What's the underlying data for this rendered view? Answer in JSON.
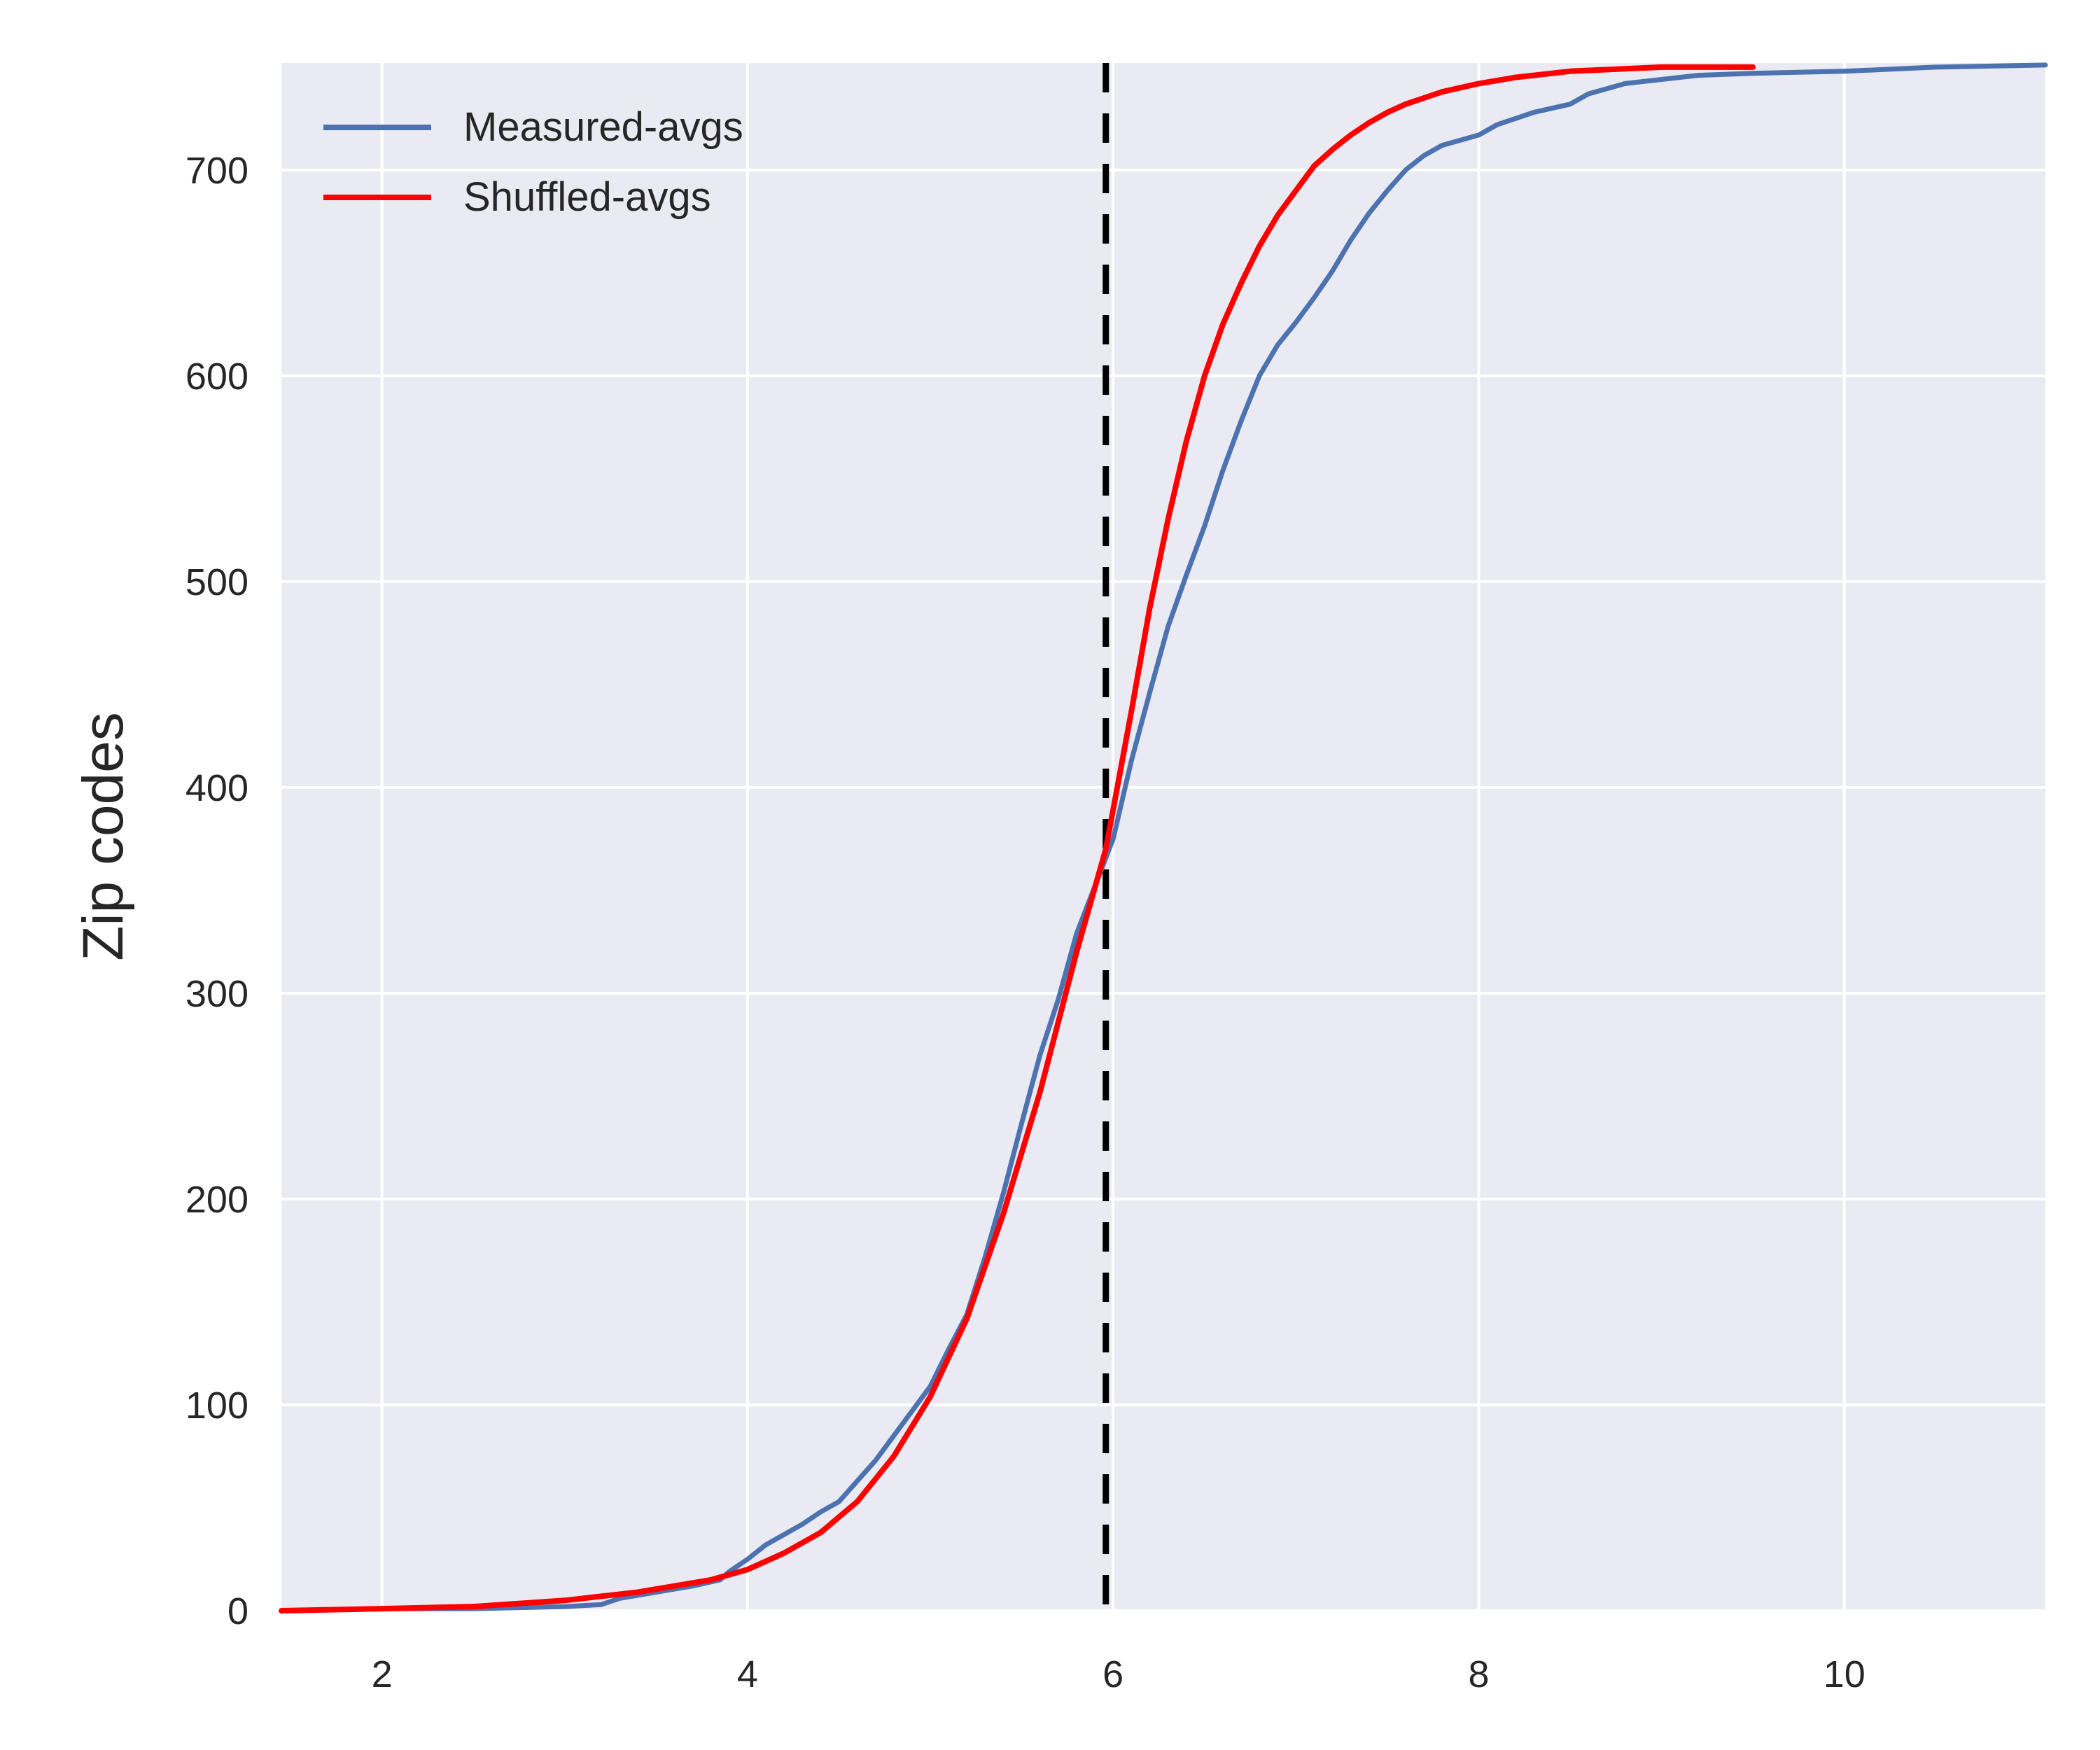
{
  "chart_data": {
    "type": "line",
    "title": "",
    "xlabel": "",
    "ylabel": "Zip codes",
    "xlim": [
      1.45,
      11.1
    ],
    "ylim": [
      0,
      752
    ],
    "x_ticks": [
      2,
      4,
      6,
      8,
      10
    ],
    "x_tick_labels": [
      "2",
      "4",
      "6",
      "8",
      "10"
    ],
    "y_ticks": [
      0,
      100,
      200,
      300,
      400,
      500,
      600,
      700
    ],
    "y_tick_labels": [
      "0",
      "100",
      "200",
      "300",
      "400",
      "500",
      "600",
      "700"
    ],
    "grid": true,
    "legend_position": "top-left",
    "vline": {
      "x": 5.96,
      "style": "dashed",
      "color": "#000000"
    },
    "series": [
      {
        "name": "Measured-avgs",
        "color": "#4c72b0",
        "x": [
          1.45,
          2.0,
          2.5,
          3.0,
          3.2,
          3.3,
          3.5,
          3.7,
          3.85,
          3.9,
          4.0,
          4.1,
          4.2,
          4.3,
          4.4,
          4.5,
          4.6,
          4.7,
          4.8,
          4.9,
          5.0,
          5.1,
          5.2,
          5.3,
          5.4,
          5.5,
          5.6,
          5.7,
          5.8,
          5.9,
          6.0,
          6.1,
          6.2,
          6.3,
          6.4,
          6.5,
          6.6,
          6.7,
          6.8,
          6.9,
          7.0,
          7.1,
          7.2,
          7.3,
          7.4,
          7.5,
          7.6,
          7.7,
          7.8,
          8.0,
          8.1,
          8.2,
          8.3,
          8.5,
          8.6,
          8.8,
          9.0,
          9.2,
          9.5,
          10.0,
          10.5,
          11.1
        ],
        "values": [
          0,
          1,
          1,
          2,
          3,
          6,
          9,
          12,
          15,
          19,
          25,
          32,
          37,
          42,
          48,
          53,
          63,
          73,
          85,
          97,
          109,
          127,
          144,
          172,
          203,
          237,
          270,
          297,
          329,
          352,
          375,
          413,
          446,
          478,
          503,
          527,
          554,
          578,
          600,
          615,
          626,
          638,
          651,
          666,
          679,
          690,
          700,
          707,
          712,
          717,
          722,
          725,
          728,
          732,
          737,
          742,
          744,
          746,
          747,
          748,
          750,
          751
        ]
      },
      {
        "name": "Shuffled-avgs",
        "color": "#ff0000",
        "x": [
          1.45,
          2.0,
          2.5,
          3.0,
          3.2,
          3.4,
          3.6,
          3.8,
          4.0,
          4.2,
          4.4,
          4.6,
          4.8,
          5.0,
          5.2,
          5.4,
          5.6,
          5.8,
          5.96,
          6.1,
          6.2,
          6.3,
          6.4,
          6.5,
          6.6,
          6.7,
          6.8,
          6.9,
          7.0,
          7.1,
          7.2,
          7.3,
          7.4,
          7.5,
          7.6,
          7.7,
          7.8,
          8.0,
          8.2,
          8.5,
          9.0,
          9.5
        ],
        "values": [
          0,
          1,
          2,
          5,
          7,
          9,
          12,
          15,
          20,
          28,
          38,
          53,
          75,
          104,
          142,
          193,
          252,
          320,
          370,
          437,
          487,
          530,
          568,
          600,
          625,
          645,
          663,
          678,
          690,
          702,
          710,
          717,
          723,
          728,
          732,
          735,
          738,
          742,
          745,
          748,
          750,
          750
        ]
      }
    ]
  }
}
